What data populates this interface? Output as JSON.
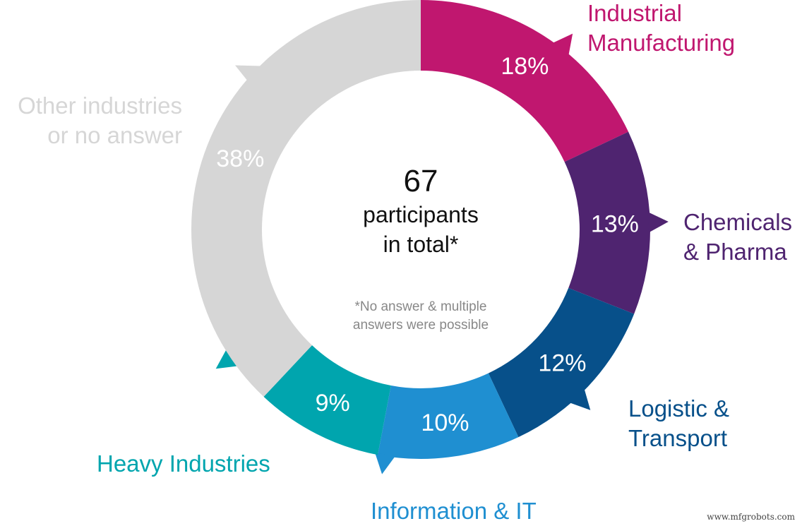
{
  "chart_data": {
    "type": "pie",
    "style": "donut",
    "start": "top, clockwise",
    "categories": [
      "Industrial Manufacturing",
      "Chemicals & Pharma",
      "Logistic & Transport",
      "Information & IT",
      "Heavy Industries",
      "Other industries or no answer"
    ],
    "values": [
      18,
      13,
      12,
      10,
      9,
      38
    ],
    "value_labels": [
      "18%",
      "13%",
      "12%",
      "10%",
      "9%",
      "38%"
    ],
    "colors": [
      "#c0176f",
      "#4f2470",
      "#07508a",
      "#1f8fd1",
      "#00a5ae",
      "#d6d6d6"
    ],
    "label_lines": [
      [
        "Industrial",
        "Manufacturing"
      ],
      [
        "Chemicals",
        "& Pharma"
      ],
      [
        "Logistic &",
        "Transport"
      ],
      [
        "Information & IT"
      ],
      [
        "Heavy Industries"
      ],
      [
        "Other industries",
        "or no answer"
      ]
    ],
    "center": {
      "number": "67",
      "line1": "participants",
      "line2": "in total*",
      "note1": "*No answer & multiple",
      "note2": "answers were possible"
    }
  },
  "watermark": "www.mfgrobots.com"
}
